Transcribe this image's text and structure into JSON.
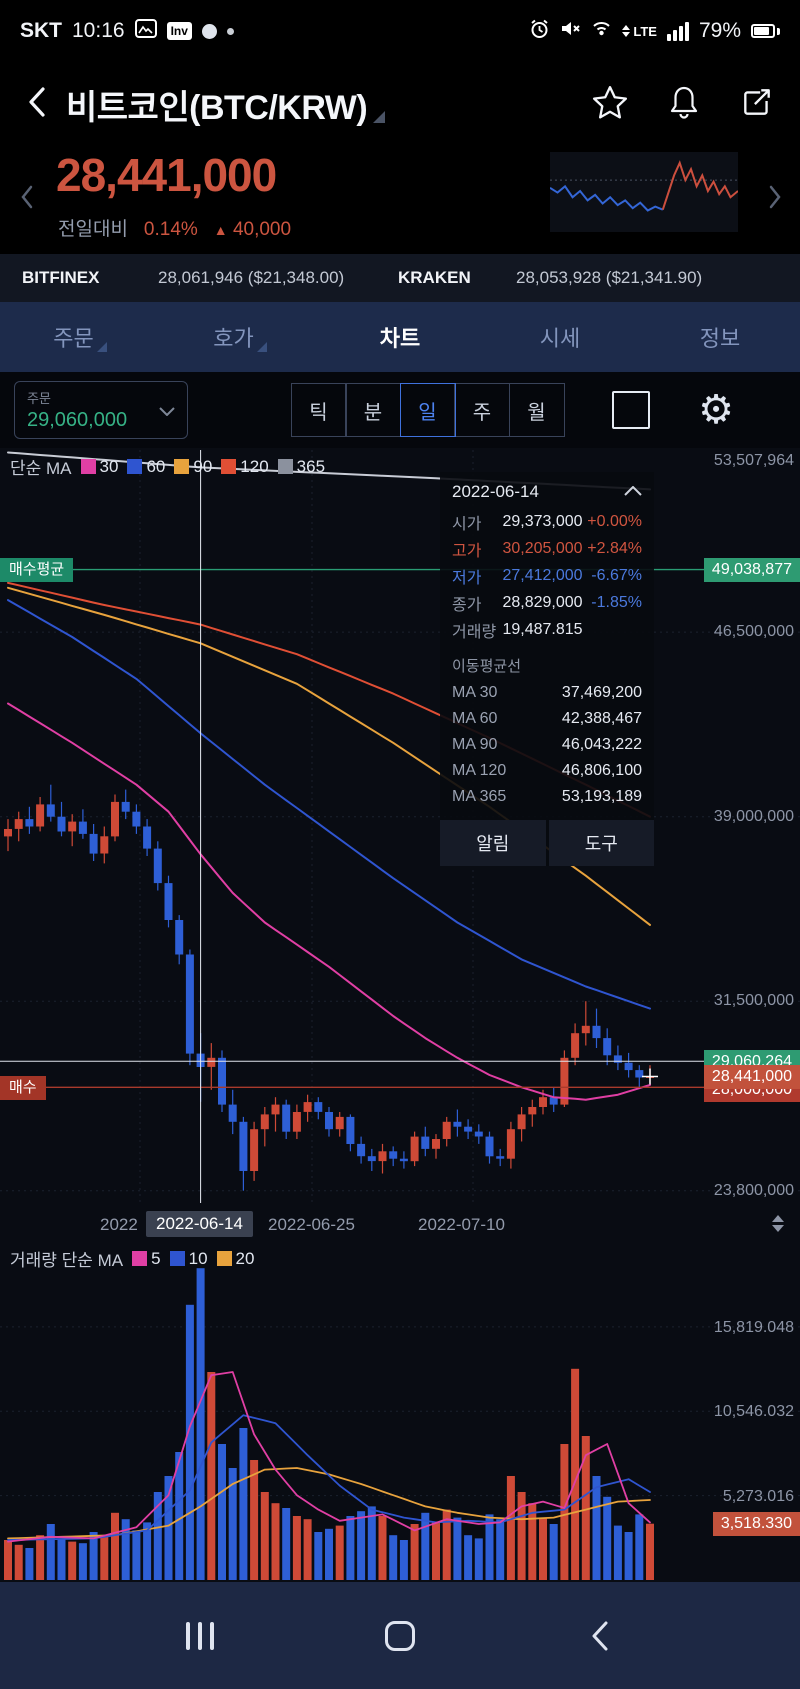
{
  "status_bar": {
    "carrier": "SKT",
    "time": "10:16",
    "inv_badge": "Inv",
    "network": "LTE",
    "battery_pct": "79%"
  },
  "header": {
    "title": "비트코인(BTC/KRW)"
  },
  "price": {
    "current": "28,441,000",
    "change_label": "전일대비",
    "change_pct": "0.14%",
    "change_arrow": "▲",
    "change_amount": "40,000"
  },
  "exchanges": [
    {
      "name": "BITFINEX",
      "value": "28,061,946 ($21,348.00)"
    },
    {
      "name": "KRAKEN",
      "value": "28,053,928 ($21,341.90)"
    }
  ],
  "tabs": [
    {
      "label": "주문"
    },
    {
      "label": "호가"
    },
    {
      "label": "차트"
    },
    {
      "label": "시세"
    },
    {
      "label": "정보"
    }
  ],
  "toolbar": {
    "order_label": "주문",
    "order_value": "29,060,000",
    "timeframes": [
      "틱",
      "분",
      "일",
      "주",
      "월"
    ]
  },
  "chart": {
    "legend_title": "단순 MA",
    "legend": [
      {
        "label": "30",
        "color": "#e03fa4"
      },
      {
        "label": "60",
        "color": "#2f55d0"
      },
      {
        "label": "90",
        "color": "#e8a33d"
      },
      {
        "label": "120",
        "color": "#e04f35"
      },
      {
        "label": "365",
        "color": "#8b919e"
      }
    ],
    "left_badges": [
      {
        "label": "매수평균"
      },
      {
        "label": "매수"
      }
    ],
    "y_axis": {
      "top": "53,507,964",
      "avg_buy": "49,038,877",
      "l1": "46,500,000",
      "l2": "39,000,000",
      "l3": "31,500,000",
      "order": "29,060,264",
      "price": "28,441,000",
      "buy": "28,000,000",
      "bottom": "23,800,000"
    },
    "x_axis": [
      "2022",
      "2022-06-14",
      "2022-06-25",
      "2022-07-10"
    ]
  },
  "tooltip": {
    "date": "2022-06-14",
    "rows": [
      {
        "label": "시가",
        "value": "29,373,000",
        "pct": "+0.00%"
      },
      {
        "label": "고가",
        "value": "30,205,000",
        "pct": "+2.84%"
      },
      {
        "label": "저가",
        "value": "27,412,000",
        "pct": "-6.67%"
      },
      {
        "label": "종가",
        "value": "28,829,000",
        "pct": "-1.85%"
      },
      {
        "label": "거래량",
        "value": "19,487.815",
        "pct": ""
      }
    ],
    "ma_title": "이동평균선",
    "ma_rows": [
      {
        "label": "MA 30",
        "value": "37,469,200"
      },
      {
        "label": "MA 60",
        "value": "42,388,467"
      },
      {
        "label": "MA 90",
        "value": "46,043,222"
      },
      {
        "label": "MA 120",
        "value": "46,806,100"
      },
      {
        "label": "MA 365",
        "value": "53,193,189"
      }
    ],
    "buttons": [
      "알림",
      "도구"
    ]
  },
  "volume": {
    "legend_title": "거래량 단순 MA",
    "legend": [
      {
        "label": "5",
        "color": "#e03fa4"
      },
      {
        "label": "10",
        "color": "#2f55d0"
      },
      {
        "label": "20",
        "color": "#e8a33d"
      }
    ],
    "y_axis": [
      "15,819.048",
      "10,546.032",
      "5,273.016"
    ],
    "current": "3,518.330"
  },
  "chart_data": {
    "type": "candlestick",
    "units": "price in KRW millions, volume in thousands",
    "crosshair_index": 18,
    "candles": [
      [
        38.2,
        38.9,
        37.6,
        38.5,
        2.5
      ],
      [
        38.5,
        39.2,
        38.0,
        38.9,
        2.2
      ],
      [
        38.9,
        39.4,
        38.3,
        38.6,
        2.0
      ],
      [
        38.6,
        39.8,
        38.4,
        39.5,
        2.8
      ],
      [
        39.5,
        40.3,
        38.8,
        39.0,
        3.5
      ],
      [
        39.0,
        39.6,
        38.2,
        38.4,
        2.6
      ],
      [
        38.4,
        39.1,
        37.8,
        38.8,
        2.4
      ],
      [
        38.8,
        39.3,
        38.1,
        38.3,
        2.3
      ],
      [
        38.3,
        38.7,
        37.2,
        37.5,
        3.0
      ],
      [
        37.5,
        38.6,
        37.1,
        38.2,
        2.7
      ],
      [
        38.2,
        39.9,
        38.0,
        39.6,
        4.2
      ],
      [
        39.6,
        40.1,
        38.9,
        39.2,
        3.8
      ],
      [
        39.2,
        39.5,
        38.3,
        38.6,
        3.1
      ],
      [
        38.6,
        38.9,
        37.4,
        37.7,
        3.6
      ],
      [
        37.7,
        38.0,
        36.0,
        36.3,
        5.5
      ],
      [
        36.3,
        36.6,
        34.5,
        34.8,
        6.5
      ],
      [
        34.8,
        35.0,
        33.0,
        33.4,
        8.0
      ],
      [
        33.4,
        33.6,
        28.9,
        29.373,
        17.2
      ],
      [
        29.373,
        30.205,
        27.412,
        28.829,
        19.488
      ],
      [
        28.829,
        29.8,
        27.9,
        29.2,
        13.0
      ],
      [
        29.2,
        29.5,
        27.0,
        27.3,
        8.5
      ],
      [
        27.3,
        27.9,
        26.1,
        26.6,
        7.0
      ],
      [
        26.6,
        26.8,
        23.8,
        24.6,
        9.5
      ],
      [
        24.6,
        26.6,
        24.2,
        26.3,
        7.5
      ],
      [
        26.3,
        27.2,
        25.6,
        26.9,
        5.5
      ],
      [
        26.9,
        27.6,
        26.2,
        27.3,
        4.8
      ],
      [
        27.3,
        27.5,
        25.9,
        26.2,
        4.5
      ],
      [
        26.2,
        27.3,
        25.9,
        27.0,
        4.0
      ],
      [
        27.0,
        27.7,
        26.6,
        27.4,
        3.8
      ],
      [
        27.4,
        27.6,
        26.7,
        27.0,
        3.0
      ],
      [
        27.0,
        27.2,
        26.0,
        26.3,
        3.2
      ],
      [
        26.3,
        27.0,
        26.0,
        26.8,
        3.4
      ],
      [
        26.8,
        26.9,
        25.4,
        25.7,
        4.0
      ],
      [
        25.7,
        26.0,
        24.9,
        25.2,
        4.3
      ],
      [
        25.2,
        25.5,
        24.6,
        25.0,
        4.6
      ],
      [
        25.0,
        25.7,
        24.5,
        25.4,
        4.0
      ],
      [
        25.4,
        25.6,
        24.8,
        25.1,
        2.8
      ],
      [
        25.1,
        25.4,
        24.7,
        25.0,
        2.5
      ],
      [
        25.0,
        26.2,
        24.8,
        26.0,
        3.5
      ],
      [
        26.0,
        26.4,
        25.2,
        25.5,
        4.2
      ],
      [
        25.5,
        26.1,
        25.1,
        25.9,
        3.6
      ],
      [
        25.9,
        26.8,
        25.6,
        26.6,
        4.4
      ],
      [
        26.6,
        27.1,
        26.0,
        26.4,
        3.9
      ],
      [
        26.4,
        26.7,
        25.9,
        26.2,
        2.8
      ],
      [
        26.2,
        26.5,
        25.7,
        26.0,
        2.6
      ],
      [
        26.0,
        26.2,
        24.9,
        25.2,
        4.1
      ],
      [
        25.2,
        25.5,
        24.8,
        25.1,
        3.8
      ],
      [
        25.1,
        26.6,
        24.7,
        26.3,
        6.5
      ],
      [
        26.3,
        27.2,
        25.8,
        26.9,
        5.5
      ],
      [
        26.9,
        27.5,
        26.4,
        27.2,
        4.8
      ],
      [
        27.2,
        27.9,
        26.9,
        27.6,
        3.9
      ],
      [
        27.6,
        28.0,
        27.0,
        27.3,
        3.5
      ],
      [
        27.3,
        29.5,
        27.2,
        29.2,
        8.5
      ],
      [
        29.2,
        30.6,
        28.9,
        30.2,
        13.2
      ],
      [
        30.2,
        31.5,
        29.7,
        30.5,
        9.0
      ],
      [
        30.5,
        31.2,
        29.6,
        30.0,
        6.5
      ],
      [
        30.0,
        30.4,
        28.9,
        29.3,
        5.2
      ],
      [
        29.3,
        29.7,
        28.7,
        29.0,
        3.4
      ],
      [
        29.0,
        29.4,
        28.4,
        28.7,
        3.0
      ],
      [
        28.7,
        28.9,
        27.95,
        28.401,
        4.1
      ],
      [
        28.401,
        28.9,
        28.1,
        28.441,
        3.518
      ]
    ],
    "ma_anchors": {
      "ma30": [
        [
          0,
          43.6
        ],
        [
          6,
          42.0
        ],
        [
          12,
          40.3
        ],
        [
          15,
          39.2
        ],
        [
          18,
          37.469
        ],
        [
          21,
          35.9
        ],
        [
          24,
          34.7
        ],
        [
          27,
          33.8
        ],
        [
          30,
          32.9
        ],
        [
          33,
          31.9
        ],
        [
          36,
          30.9
        ],
        [
          39,
          30.0
        ],
        [
          42,
          29.2
        ],
        [
          45,
          28.5
        ],
        [
          48,
          28.0
        ],
        [
          51,
          27.6
        ],
        [
          54,
          27.5
        ],
        [
          57,
          27.7
        ],
        [
          60,
          28.1
        ]
      ],
      "ma60": [
        [
          0,
          47.8
        ],
        [
          6,
          46.3
        ],
        [
          12,
          44.6
        ],
        [
          18,
          42.388
        ],
        [
          24,
          40.3
        ],
        [
          30,
          38.4
        ],
        [
          36,
          36.5
        ],
        [
          42,
          34.7
        ],
        [
          48,
          33.2
        ],
        [
          54,
          32.1
        ],
        [
          60,
          31.2
        ]
      ],
      "ma90": [
        [
          0,
          48.3
        ],
        [
          9,
          47.2
        ],
        [
          18,
          46.043
        ],
        [
          27,
          44.4
        ],
        [
          36,
          42.0
        ],
        [
          45,
          39.4
        ],
        [
          54,
          36.6
        ],
        [
          60,
          34.6
        ]
      ],
      "ma120": [
        [
          0,
          48.5
        ],
        [
          9,
          47.6
        ],
        [
          18,
          46.806
        ],
        [
          27,
          45.6
        ],
        [
          36,
          44.0
        ],
        [
          45,
          42.2
        ],
        [
          54,
          40.3
        ],
        [
          60,
          39.0
        ]
      ],
      "ma365": [
        [
          0,
          53.8
        ],
        [
          18,
          53.193
        ],
        [
          40,
          52.75
        ],
        [
          60,
          52.3
        ]
      ]
    },
    "vol_ma_anchors": {
      "ma5": [
        [
          0,
          2.4
        ],
        [
          4,
          2.7
        ],
        [
          8,
          2.6
        ],
        [
          12,
          3.3
        ],
        [
          15,
          5.3
        ],
        [
          17,
          9.6
        ],
        [
          19,
          12.8
        ],
        [
          21,
          13.0
        ],
        [
          23,
          9.1
        ],
        [
          25,
          6.9
        ],
        [
          27,
          5.3
        ],
        [
          29,
          4.4
        ],
        [
          31,
          3.7
        ],
        [
          33,
          3.9
        ],
        [
          35,
          4.1
        ],
        [
          38,
          3.1
        ],
        [
          41,
          3.8
        ],
        [
          44,
          3.5
        ],
        [
          46,
          3.6
        ],
        [
          48,
          4.6
        ],
        [
          50,
          4.9
        ],
        [
          52,
          4.5
        ],
        [
          54,
          7.8
        ],
        [
          56,
          8.5
        ],
        [
          58,
          4.8
        ],
        [
          60,
          3.6
        ]
      ],
      "ma10": [
        [
          0,
          2.5
        ],
        [
          8,
          2.6
        ],
        [
          13,
          3.1
        ],
        [
          17,
          5.6
        ],
        [
          19,
          8.6
        ],
        [
          22,
          10.3
        ],
        [
          25,
          9.8
        ],
        [
          28,
          7.8
        ],
        [
          31,
          5.9
        ],
        [
          34,
          4.4
        ],
        [
          37,
          3.9
        ],
        [
          40,
          3.6
        ],
        [
          43,
          3.7
        ],
        [
          46,
          3.6
        ],
        [
          49,
          4.2
        ],
        [
          52,
          4.4
        ],
        [
          55,
          5.8
        ],
        [
          58,
          6.3
        ],
        [
          60,
          5.5
        ]
      ],
      "ma20": [
        [
          0,
          2.6
        ],
        [
          10,
          2.8
        ],
        [
          15,
          3.4
        ],
        [
          18,
          4.6
        ],
        [
          21,
          6.0
        ],
        [
          24,
          6.9
        ],
        [
          27,
          7.0
        ],
        [
          30,
          6.6
        ],
        [
          33,
          6.0
        ],
        [
          36,
          5.3
        ],
        [
          39,
          4.6
        ],
        [
          42,
          4.2
        ],
        [
          45,
          3.9
        ],
        [
          48,
          3.8
        ],
        [
          51,
          3.9
        ],
        [
          54,
          4.4
        ],
        [
          57,
          4.9
        ],
        [
          60,
          5.0
        ]
      ]
    },
    "lines": {
      "avg_buy": 49.038877,
      "order": 29.060264,
      "price": 28.441,
      "buy": 28.0
    },
    "y_gridlines": [
      46.5,
      39.0,
      31.5,
      23.8
    ],
    "x_gridlines": [
      140,
      312,
      473
    ],
    "vol_gridlines": [
      5.273016,
      10.546032,
      15.819048
    ],
    "sparkline": {
      "blue": [
        [
          0,
          46
        ],
        [
          4,
          52
        ],
        [
          8,
          44
        ],
        [
          12,
          58
        ],
        [
          16,
          50
        ],
        [
          20,
          62
        ],
        [
          24,
          55
        ],
        [
          28,
          66
        ],
        [
          32,
          58
        ],
        [
          36,
          68
        ],
        [
          40,
          62
        ],
        [
          44,
          72
        ],
        [
          48,
          65
        ],
        [
          52,
          75
        ],
        [
          56,
          70
        ],
        [
          60,
          74
        ]
      ],
      "red": [
        [
          60,
          74
        ],
        [
          63,
          52
        ],
        [
          66,
          30
        ],
        [
          69,
          14
        ],
        [
          72,
          36
        ],
        [
          75,
          22
        ],
        [
          78,
          44
        ],
        [
          81,
          30
        ],
        [
          84,
          50
        ],
        [
          87,
          38
        ],
        [
          90,
          54
        ],
        [
          93,
          44
        ],
        [
          96,
          58
        ],
        [
          100,
          50
        ]
      ]
    }
  }
}
